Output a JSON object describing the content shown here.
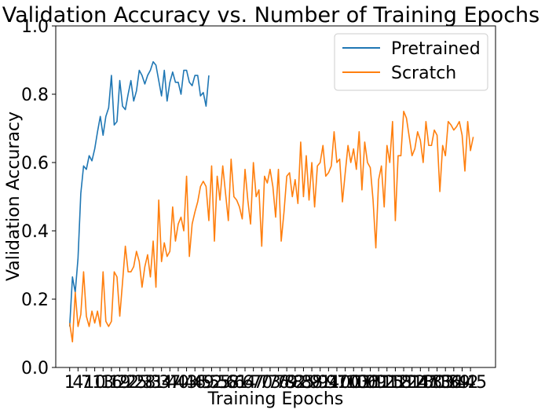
{
  "chart_data": {
    "type": "line",
    "title": "Validation Accuracy vs. Number of Training Epochs",
    "xlabel": "Training Epochs",
    "ylabel": "Validation Accuracy",
    "ylim": [
      0.0,
      1.0
    ],
    "xlim": [
      -4,
      154
    ],
    "yticks": [
      "0.0",
      "0.2",
      "0.4",
      "0.6",
      "0.8",
      "1.0"
    ],
    "xtick_step": 3,
    "grid": false,
    "legend_position": "top-right",
    "series": [
      {
        "name": "Pretrained",
        "color": "#1f77b4",
        "x_start": 1,
        "values": [
          0.12,
          0.265,
          0.22,
          0.32,
          0.51,
          0.59,
          0.58,
          0.62,
          0.605,
          0.64,
          0.69,
          0.735,
          0.68,
          0.735,
          0.76,
          0.855,
          0.71,
          0.72,
          0.84,
          0.765,
          0.755,
          0.8,
          0.84,
          0.78,
          0.81,
          0.87,
          0.855,
          0.83,
          0.855,
          0.87,
          0.895,
          0.885,
          0.84,
          0.795,
          0.87,
          0.78,
          0.835,
          0.865,
          0.835,
          0.835,
          0.8,
          0.87,
          0.87,
          0.835,
          0.825,
          0.855,
          0.855,
          0.795,
          0.805,
          0.765,
          0.855
        ]
      },
      {
        "name": "Scratch",
        "color": "#ff7f0e",
        "x_start": 1,
        "values": [
          0.13,
          0.075,
          0.22,
          0.12,
          0.155,
          0.28,
          0.15,
          0.12,
          0.165,
          0.13,
          0.165,
          0.12,
          0.28,
          0.135,
          0.12,
          0.135,
          0.28,
          0.265,
          0.15,
          0.25,
          0.355,
          0.28,
          0.28,
          0.295,
          0.34,
          0.31,
          0.235,
          0.295,
          0.33,
          0.265,
          0.37,
          0.235,
          0.49,
          0.31,
          0.365,
          0.325,
          0.34,
          0.47,
          0.37,
          0.42,
          0.44,
          0.4,
          0.56,
          0.325,
          0.42,
          0.455,
          0.485,
          0.53,
          0.545,
          0.53,
          0.43,
          0.59,
          0.37,
          0.56,
          0.49,
          0.59,
          0.51,
          0.43,
          0.61,
          0.5,
          0.49,
          0.47,
          0.435,
          0.58,
          0.49,
          0.42,
          0.6,
          0.5,
          0.52,
          0.355,
          0.56,
          0.54,
          0.58,
          0.53,
          0.44,
          0.58,
          0.37,
          0.455,
          0.56,
          0.57,
          0.5,
          0.55,
          0.48,
          0.66,
          0.5,
          0.62,
          0.49,
          0.6,
          0.47,
          0.59,
          0.6,
          0.65,
          0.56,
          0.57,
          0.59,
          0.69,
          0.6,
          0.61,
          0.485,
          0.57,
          0.65,
          0.6,
          0.64,
          0.58,
          0.69,
          0.52,
          0.66,
          0.6,
          0.585,
          0.49,
          0.35,
          0.55,
          0.59,
          0.47,
          0.65,
          0.6,
          0.72,
          0.43,
          0.62,
          0.62,
          0.75,
          0.73,
          0.675,
          0.62,
          0.64,
          0.69,
          0.665,
          0.6,
          0.72,
          0.65,
          0.65,
          0.695,
          0.68,
          0.515,
          0.65,
          0.62,
          0.72,
          0.71,
          0.695,
          0.705,
          0.72,
          0.68,
          0.575,
          0.72,
          0.635,
          0.675
        ]
      }
    ]
  }
}
